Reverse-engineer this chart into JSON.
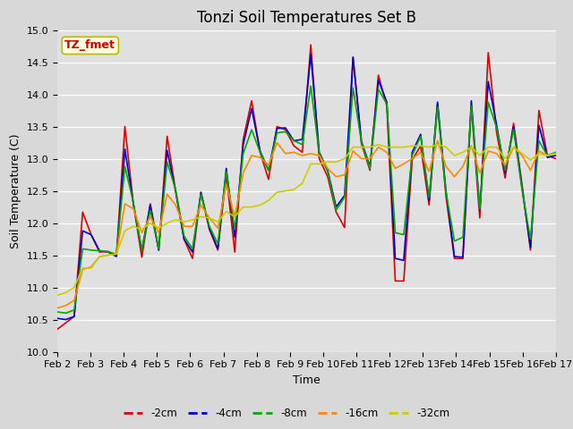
{
  "title": "Tonzi Soil Temperatures Set B",
  "xlabel": "Time",
  "ylabel": "Soil Temperature (C)",
  "ylim": [
    10.0,
    15.0
  ],
  "yticks": [
    10.0,
    10.5,
    11.0,
    11.5,
    12.0,
    12.5,
    13.0,
    13.5,
    14.0,
    14.5,
    15.0
  ],
  "x_labels": [
    "Feb 2",
    "Feb 3",
    "Feb 4",
    "Feb 5",
    "Feb 6",
    "Feb 7",
    "Feb 8",
    "Feb 9",
    "Feb 10",
    "Feb 11",
    "Feb 12",
    "Feb 13",
    "Feb 14",
    "Feb 15",
    "Feb 16",
    "Feb 17"
  ],
  "series": {
    "-2cm": [
      10.35,
      10.45,
      10.55,
      12.17,
      11.82,
      11.55,
      11.56,
      11.5,
      13.5,
      12.3,
      11.47,
      12.3,
      11.58,
      13.35,
      12.5,
      11.75,
      11.45,
      12.47,
      11.9,
      11.58,
      12.75,
      11.55,
      13.3,
      13.9,
      13.1,
      12.68,
      13.5,
      13.45,
      13.2,
      13.1,
      14.77,
      13.0,
      12.72,
      12.17,
      11.93,
      14.57,
      13.23,
      12.82,
      14.3,
      13.82,
      11.1,
      11.1,
      12.98,
      13.2,
      12.28,
      13.85,
      12.42,
      11.45,
      11.45,
      13.82,
      12.08,
      14.65,
      13.4,
      12.7,
      13.55,
      12.6,
      11.58,
      13.75,
      13.05,
      13.0
    ],
    "-4cm": [
      10.52,
      10.5,
      10.55,
      11.88,
      11.82,
      11.57,
      11.55,
      11.48,
      13.15,
      12.3,
      11.58,
      12.28,
      11.58,
      13.13,
      12.5,
      11.75,
      11.55,
      12.48,
      11.92,
      11.6,
      12.85,
      11.78,
      13.22,
      13.78,
      13.12,
      12.82,
      13.47,
      13.48,
      13.28,
      13.3,
      14.62,
      13.1,
      12.82,
      12.25,
      12.43,
      14.58,
      13.27,
      12.88,
      14.22,
      13.88,
      11.45,
      11.42,
      13.1,
      13.38,
      12.35,
      13.88,
      12.5,
      11.48,
      11.47,
      13.9,
      12.2,
      14.2,
      13.52,
      12.78,
      13.5,
      12.55,
      11.62,
      13.52,
      13.02,
      13.05
    ],
    "-8cm": [
      10.62,
      10.6,
      10.65,
      11.6,
      11.58,
      11.57,
      11.55,
      11.52,
      12.88,
      12.32,
      11.58,
      12.2,
      11.6,
      12.95,
      12.52,
      11.8,
      11.6,
      12.45,
      11.95,
      11.68,
      12.8,
      11.9,
      13.08,
      13.45,
      13.1,
      12.82,
      13.4,
      13.42,
      13.28,
      13.22,
      14.13,
      13.08,
      12.8,
      12.2,
      12.4,
      14.1,
      13.25,
      12.85,
      14.08,
      13.85,
      11.85,
      11.82,
      13.05,
      13.35,
      12.4,
      13.8,
      12.48,
      11.72,
      11.78,
      13.82,
      12.22,
      13.88,
      13.48,
      12.82,
      13.45,
      12.52,
      11.75,
      13.28,
      13.05,
      13.1
    ],
    "-16cm": [
      10.68,
      10.72,
      10.8,
      11.28,
      11.32,
      11.48,
      11.5,
      11.52,
      12.3,
      12.22,
      11.85,
      12.1,
      11.85,
      12.45,
      12.28,
      11.95,
      11.95,
      12.28,
      12.08,
      11.92,
      12.6,
      12.1,
      12.78,
      13.05,
      13.02,
      12.9,
      13.25,
      13.08,
      13.1,
      13.05,
      13.08,
      13.05,
      12.85,
      12.72,
      12.75,
      13.12,
      13.0,
      13.0,
      13.18,
      13.1,
      12.85,
      12.92,
      13.0,
      13.1,
      12.8,
      13.28,
      12.88,
      12.72,
      12.88,
      13.2,
      12.78,
      13.12,
      13.08,
      12.9,
      13.18,
      13.05,
      12.82,
      13.12,
      13.05,
      13.08
    ],
    "-32cm": [
      10.88,
      10.92,
      11.0,
      11.3,
      11.3,
      11.48,
      11.5,
      11.52,
      11.88,
      11.95,
      11.9,
      12.0,
      11.92,
      12.0,
      12.05,
      12.02,
      12.05,
      12.1,
      12.08,
      12.02,
      12.18,
      12.1,
      12.25,
      12.25,
      12.28,
      12.35,
      12.48,
      12.5,
      12.52,
      12.62,
      12.92,
      12.92,
      12.95,
      12.95,
      13.0,
      13.18,
      13.18,
      13.18,
      13.22,
      13.18,
      13.18,
      13.18,
      13.2,
      13.2,
      13.18,
      13.22,
      13.18,
      13.05,
      13.1,
      13.18,
      13.05,
      13.18,
      13.18,
      13.0,
      13.18,
      13.08,
      12.98,
      13.08,
      13.05,
      13.08
    ]
  },
  "colors": {
    "-2cm": "#dd0000",
    "-4cm": "#0000cc",
    "-8cm": "#00aa00",
    "-16cm": "#ff8800",
    "-32cm": "#cccc00"
  },
  "legend_label": "TZ_fmet",
  "fig_bg": "#d8d8d8",
  "plot_bg": "#e0e0e0",
  "linewidth": 1.2,
  "title_fontsize": 12,
  "axis_fontsize": 9,
  "tick_fontsize": 8
}
